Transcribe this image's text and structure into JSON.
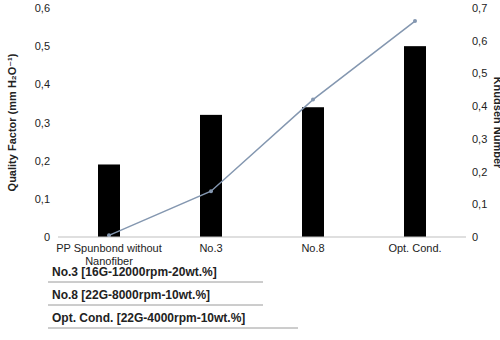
{
  "chart_data": {
    "type": "bar",
    "categories": [
      "PP Spunbond without Nanofiber",
      "No.3",
      "No.8",
      "Opt. Cond."
    ],
    "ylabel": "Quality Factor (mm H₂O⁻¹)",
    "y2label": "Knudsen Number",
    "series": [
      {
        "type": "bar",
        "color": "#000000",
        "values": [
          0.19,
          0.32,
          0.34,
          0.5
        ]
      },
      {
        "type": "line",
        "axis": "y2",
        "color": "#8497b0",
        "marker": "circle",
        "values": [
          0.005,
          0.14,
          0.42,
          0.66
        ]
      }
    ],
    "ylim": [
      0,
      0.6
    ],
    "yticks": [
      0,
      {
        "value": 0.1,
        "label": "0,1"
      },
      {
        "value": 0.2,
        "label": "0,2"
      },
      {
        "value": 0.3,
        "label": "0,3"
      },
      {
        "value": 0.4,
        "label": "0,4"
      },
      {
        "value": 0.5,
        "label": "0,5"
      },
      {
        "value": 0.6,
        "label": "0,6"
      }
    ],
    "y2lim": [
      0,
      0.7
    ],
    "y2ticks": [
      0,
      {
        "value": 0.1,
        "label": "0,1"
      },
      {
        "value": 0.2,
        "label": "0,2"
      },
      {
        "value": 0.3,
        "label": "0,3"
      },
      {
        "value": 0.4,
        "label": "0,4"
      },
      {
        "value": 0.5,
        "label": "0,5"
      },
      {
        "value": 0.6,
        "label": "0,6"
      },
      {
        "value": 0.7,
        "label": "0,7"
      }
    ],
    "grid": false,
    "annotations": [
      "No.3 [16G-12000rpm-20wt.%]",
      "No.8 [22G-8000rpm-10wt.%]",
      "Opt. Cond. [22G-4000rpm-10wt.%]"
    ]
  }
}
